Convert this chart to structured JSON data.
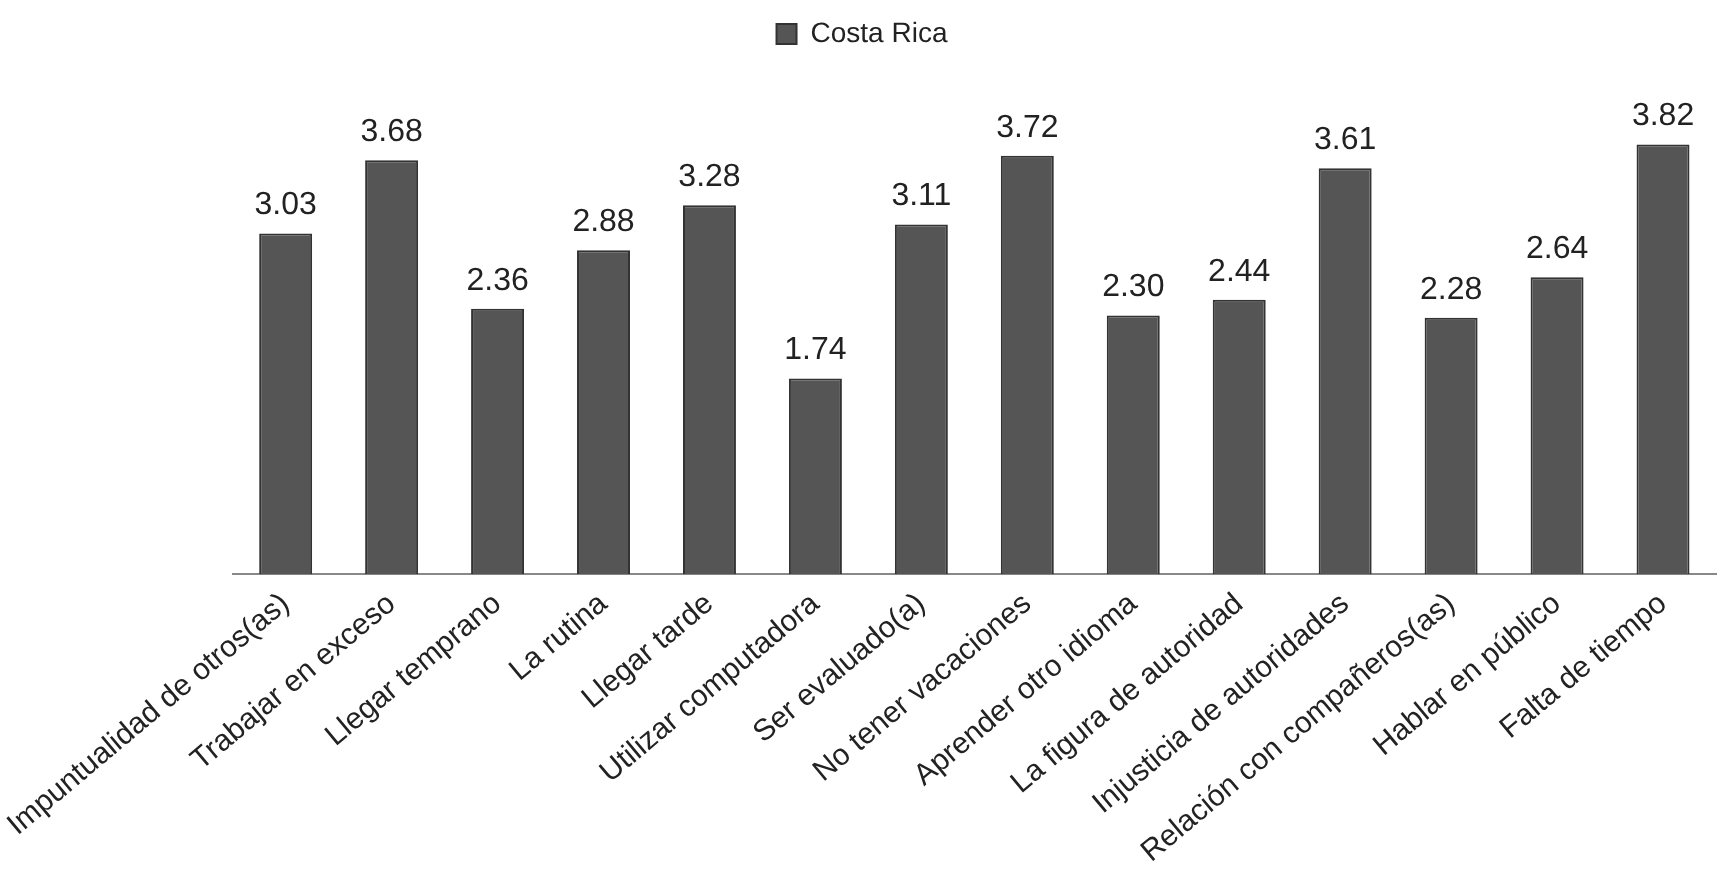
{
  "chart_data": {
    "type": "bar",
    "categories": [
      "Impuntualidad de otros(as)",
      "Trabajar en exceso",
      "Llegar temprano",
      "La rutina",
      "Llegar tarde",
      "Utilizar computadora",
      "Ser evaluado(a)",
      "No tener vacaciones",
      "Aprender otro idioma",
      "La figura de autoridad",
      "Injusticia de autoridades",
      "Relación con compañeros(as)",
      "Hablar en público",
      "Falta de tiempo"
    ],
    "series": [
      {
        "name": "Costa Rica",
        "color": "#555555",
        "values": [
          3.03,
          3.68,
          2.36,
          2.88,
          3.28,
          1.74,
          3.11,
          3.72,
          2.3,
          2.44,
          3.61,
          2.28,
          2.64,
          3.82
        ],
        "value_labels": [
          "3.03",
          "3.68",
          "2.36",
          "2.88",
          "3.28",
          "1.74",
          "3.11",
          "3.72",
          "2.30",
          "2.44",
          "3.61",
          "2.28",
          "2.64",
          "3.82"
        ]
      }
    ],
    "legend": "top",
    "grid": false,
    "tick_labels": "x"
  }
}
